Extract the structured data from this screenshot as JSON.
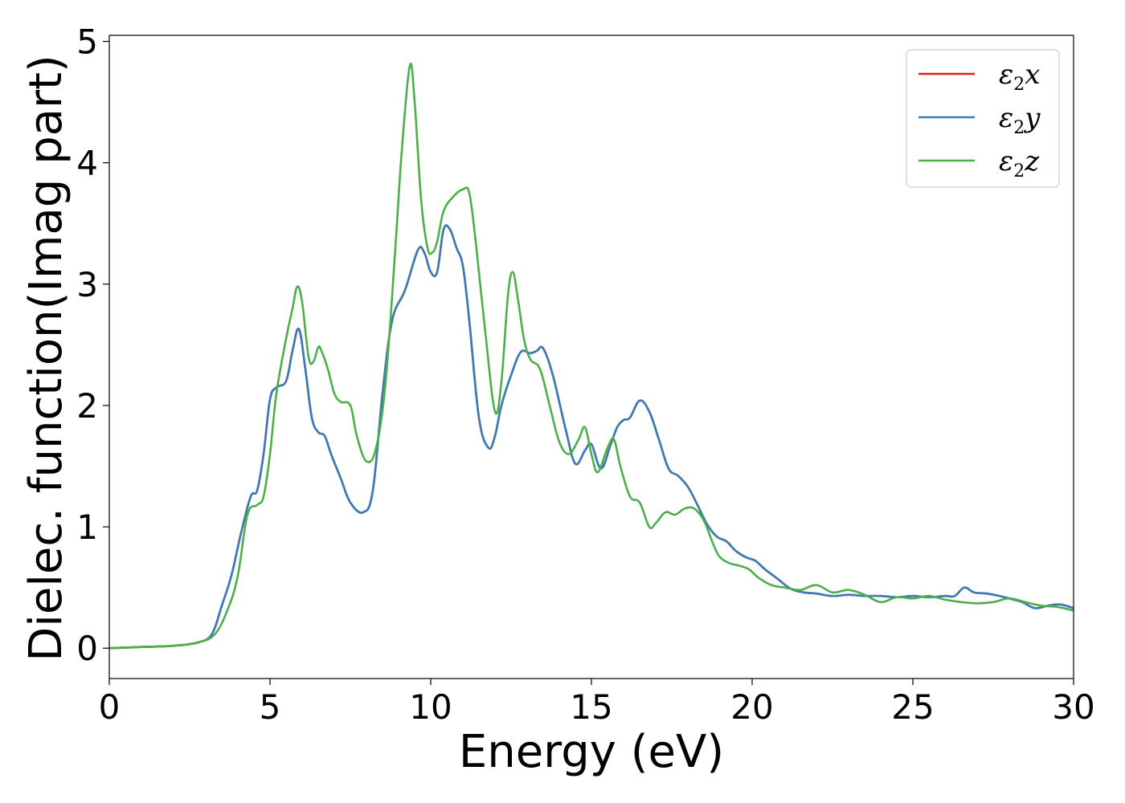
{
  "chart_data": {
    "type": "line",
    "title": "",
    "xlabel": "Energy (eV)",
    "ylabel": "Dielec. function(Imag part)",
    "xlim": [
      0,
      30
    ],
    "ylim": [
      -0.25,
      5.05
    ],
    "xticks": [
      "0",
      "5",
      "10",
      "15",
      "20",
      "25",
      "30"
    ],
    "yticks": [
      "0",
      "1",
      "2",
      "3",
      "4",
      "5"
    ],
    "grid": false,
    "legend_position": "top-right",
    "series": [
      {
        "name": "ε2x",
        "legend_main": "ε",
        "legend_sub": "2",
        "legend_var": "x",
        "color": "#e41a1c",
        "x": [
          0,
          1,
          2,
          2.8,
          3.2,
          3.5,
          3.8,
          4.1,
          4.4,
          4.6,
          4.8,
          5.0,
          5.2,
          5.5,
          5.7,
          5.9,
          6.1,
          6.3,
          6.5,
          6.7,
          6.9,
          7.2,
          7.5,
          7.9,
          8.2,
          8.5,
          8.8,
          9.2,
          9.6,
          9.8,
          10.0,
          10.2,
          10.4,
          10.6,
          10.8,
          11.0,
          11.2,
          11.5,
          11.8,
          12.0,
          12.2,
          12.5,
          12.8,
          13.1,
          13.3,
          13.5,
          13.8,
          14.2,
          14.5,
          14.8,
          15.0,
          15.3,
          15.6,
          15.8,
          16.0,
          16.2,
          16.5,
          16.8,
          17.1,
          17.4,
          17.7,
          18.0,
          18.3,
          18.6,
          18.9,
          19.2,
          19.5,
          19.8,
          20.1,
          20.4,
          20.8,
          21.2,
          21.6,
          22,
          22.5,
          23,
          23.5,
          24,
          24.5,
          25,
          25.5,
          26,
          26.3,
          26.6,
          26.9,
          27.3,
          27.7,
          28,
          28.4,
          28.8,
          29.2,
          29.6,
          30
        ],
        "values": [
          0.0,
          0.01,
          0.02,
          0.05,
          0.12,
          0.35,
          0.6,
          0.95,
          1.25,
          1.3,
          1.6,
          2.05,
          2.15,
          2.2,
          2.45,
          2.63,
          2.3,
          1.9,
          1.78,
          1.75,
          1.6,
          1.4,
          1.2,
          1.12,
          1.3,
          2.1,
          2.7,
          2.95,
          3.28,
          3.26,
          3.1,
          3.1,
          3.45,
          3.45,
          3.3,
          3.15,
          2.7,
          1.9,
          1.65,
          1.75,
          2.0,
          2.25,
          2.44,
          2.43,
          2.45,
          2.47,
          2.25,
          1.8,
          1.52,
          1.63,
          1.68,
          1.48,
          1.68,
          1.82,
          1.88,
          1.9,
          2.04,
          1.95,
          1.72,
          1.48,
          1.42,
          1.33,
          1.18,
          1.02,
          0.92,
          0.88,
          0.8,
          0.75,
          0.72,
          0.65,
          0.57,
          0.49,
          0.46,
          0.45,
          0.43,
          0.44,
          0.43,
          0.43,
          0.42,
          0.43,
          0.42,
          0.43,
          0.43,
          0.5,
          0.46,
          0.45,
          0.43,
          0.41,
          0.38,
          0.33,
          0.35,
          0.36,
          0.33
        ]
      },
      {
        "name": "ε2y",
        "legend_main": "ε",
        "legend_sub": "2",
        "legend_var": "y",
        "color": "#377eb8",
        "x": [
          0,
          1,
          2,
          2.8,
          3.2,
          3.5,
          3.8,
          4.1,
          4.4,
          4.6,
          4.8,
          5.0,
          5.2,
          5.5,
          5.7,
          5.9,
          6.1,
          6.3,
          6.5,
          6.7,
          6.9,
          7.2,
          7.5,
          7.9,
          8.2,
          8.5,
          8.8,
          9.2,
          9.6,
          9.8,
          10.0,
          10.2,
          10.4,
          10.6,
          10.8,
          11.0,
          11.2,
          11.5,
          11.8,
          12.0,
          12.2,
          12.5,
          12.8,
          13.1,
          13.3,
          13.5,
          13.8,
          14.2,
          14.5,
          14.8,
          15.0,
          15.3,
          15.6,
          15.8,
          16.0,
          16.2,
          16.5,
          16.8,
          17.1,
          17.4,
          17.7,
          18.0,
          18.3,
          18.6,
          18.9,
          19.2,
          19.5,
          19.8,
          20.1,
          20.4,
          20.8,
          21.2,
          21.6,
          22,
          22.5,
          23,
          23.5,
          24,
          24.5,
          25,
          25.5,
          26,
          26.3,
          26.6,
          26.9,
          27.3,
          27.7,
          28,
          28.4,
          28.8,
          29.2,
          29.6,
          30
        ],
        "values": [
          0.0,
          0.01,
          0.02,
          0.05,
          0.12,
          0.35,
          0.6,
          0.95,
          1.25,
          1.3,
          1.6,
          2.05,
          2.15,
          2.2,
          2.45,
          2.63,
          2.3,
          1.9,
          1.78,
          1.75,
          1.6,
          1.4,
          1.2,
          1.12,
          1.3,
          2.1,
          2.7,
          2.95,
          3.28,
          3.26,
          3.1,
          3.1,
          3.45,
          3.45,
          3.3,
          3.15,
          2.7,
          1.9,
          1.65,
          1.75,
          2.0,
          2.25,
          2.44,
          2.43,
          2.45,
          2.47,
          2.25,
          1.8,
          1.52,
          1.63,
          1.68,
          1.48,
          1.68,
          1.82,
          1.88,
          1.9,
          2.04,
          1.95,
          1.72,
          1.48,
          1.42,
          1.33,
          1.18,
          1.02,
          0.92,
          0.88,
          0.8,
          0.75,
          0.72,
          0.65,
          0.57,
          0.49,
          0.46,
          0.45,
          0.43,
          0.44,
          0.43,
          0.43,
          0.42,
          0.43,
          0.42,
          0.43,
          0.43,
          0.5,
          0.46,
          0.45,
          0.43,
          0.41,
          0.38,
          0.33,
          0.35,
          0.36,
          0.33
        ]
      },
      {
        "name": "ε2z",
        "legend_main": "ε",
        "legend_sub": "2",
        "legend_var": "z",
        "color": "#4daf4a",
        "x": [
          0,
          1,
          2,
          2.8,
          3.3,
          3.7,
          4.0,
          4.3,
          4.6,
          4.8,
          5.0,
          5.2,
          5.5,
          5.7,
          5.85,
          6.0,
          6.2,
          6.35,
          6.5,
          6.6,
          6.8,
          7.0,
          7.2,
          7.5,
          7.7,
          8.0,
          8.3,
          8.6,
          8.9,
          9.1,
          9.35,
          9.5,
          9.7,
          9.9,
          10.05,
          10.2,
          10.4,
          10.7,
          11.0,
          11.2,
          11.4,
          11.7,
          12.0,
          12.2,
          12.4,
          12.55,
          12.7,
          12.9,
          13.1,
          13.4,
          13.7,
          14.0,
          14.3,
          14.6,
          14.8,
          15.0,
          15.2,
          15.5,
          15.7,
          15.9,
          16.2,
          16.5,
          16.8,
          17.0,
          17.3,
          17.6,
          17.9,
          18.2,
          18.5,
          18.8,
          19.0,
          19.3,
          19.6,
          19.9,
          20.2,
          20.6,
          21,
          21.5,
          22,
          22.5,
          23,
          23.5,
          24,
          24.5,
          25,
          25.5,
          26,
          26.5,
          27,
          27.5,
          28,
          28.5,
          29,
          29.5,
          30
        ],
        "values": [
          0.0,
          0.01,
          0.02,
          0.05,
          0.12,
          0.33,
          0.6,
          1.1,
          1.18,
          1.25,
          1.6,
          2.1,
          2.55,
          2.8,
          2.98,
          2.85,
          2.4,
          2.36,
          2.48,
          2.45,
          2.3,
          2.1,
          2.03,
          2.0,
          1.75,
          1.54,
          1.65,
          2.2,
          3.3,
          4.1,
          4.8,
          4.5,
          3.7,
          3.3,
          3.26,
          3.35,
          3.6,
          3.72,
          3.78,
          3.75,
          3.35,
          2.6,
          1.95,
          2.2,
          2.9,
          3.1,
          2.9,
          2.55,
          2.38,
          2.3,
          2.0,
          1.7,
          1.6,
          1.72,
          1.82,
          1.6,
          1.45,
          1.65,
          1.72,
          1.5,
          1.25,
          1.2,
          1.0,
          1.03,
          1.12,
          1.1,
          1.15,
          1.15,
          1.05,
          0.85,
          0.75,
          0.7,
          0.68,
          0.65,
          0.58,
          0.52,
          0.5,
          0.48,
          0.52,
          0.46,
          0.48,
          0.44,
          0.38,
          0.42,
          0.41,
          0.43,
          0.4,
          0.38,
          0.37,
          0.38,
          0.41,
          0.38,
          0.35,
          0.34,
          0.31
        ]
      }
    ]
  }
}
